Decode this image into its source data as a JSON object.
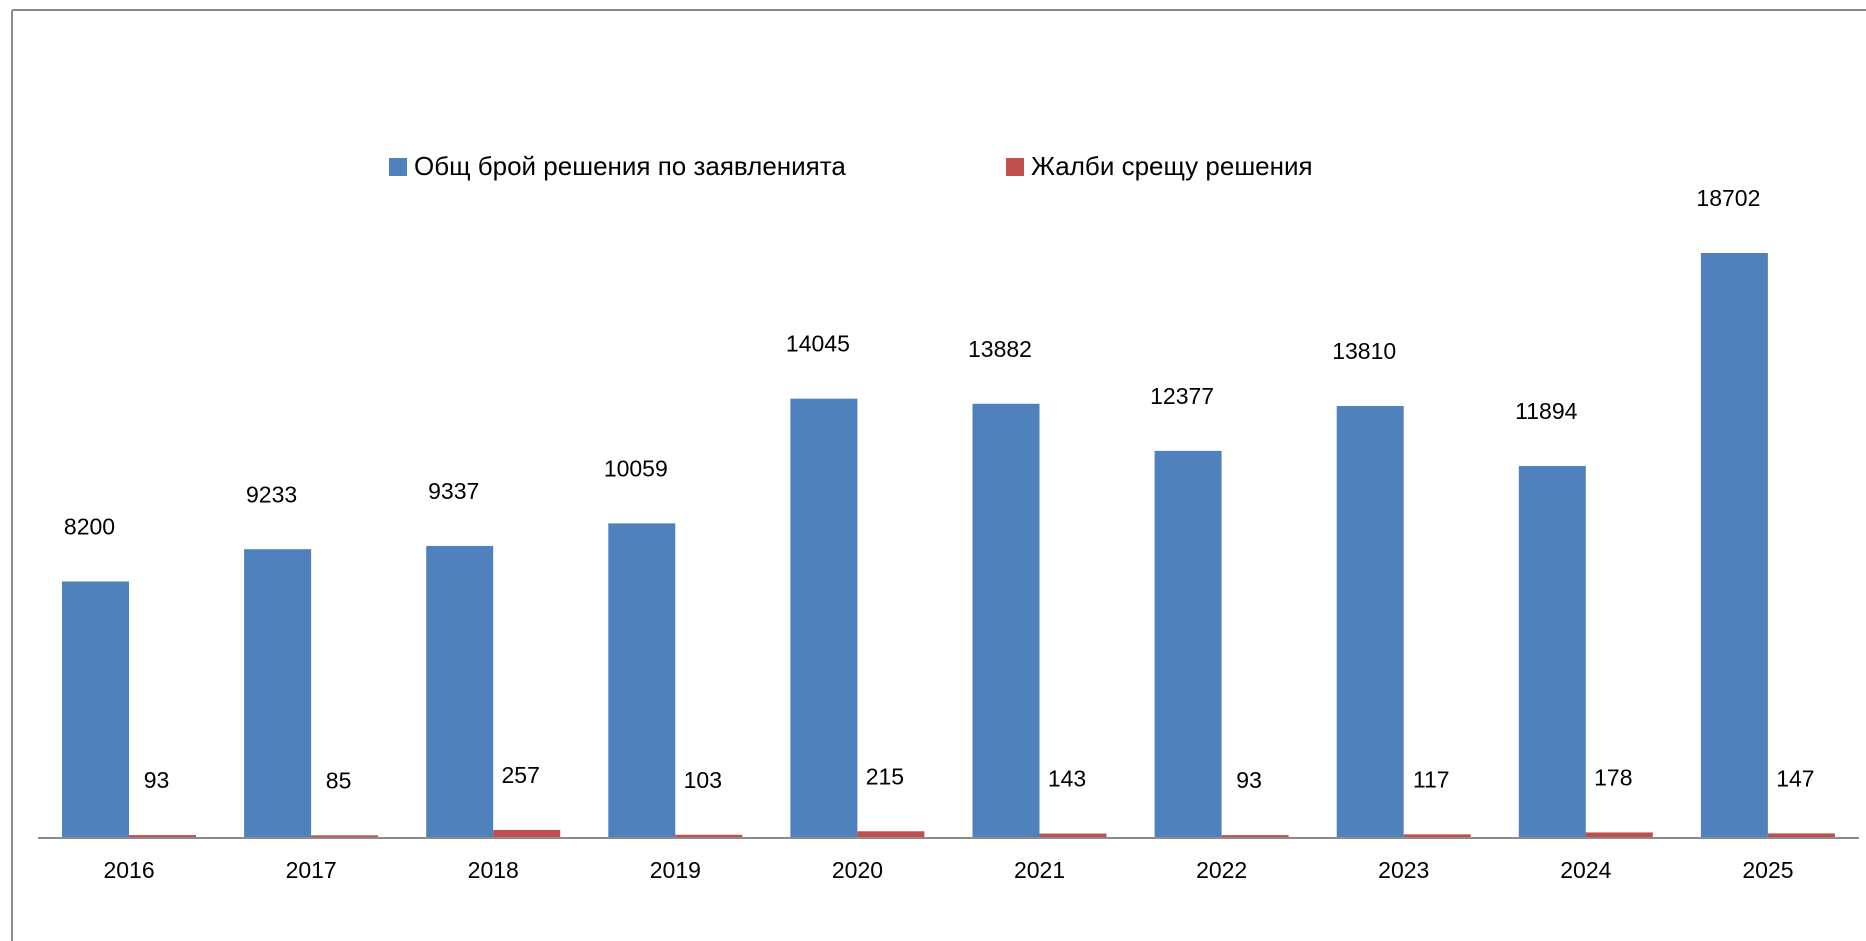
{
  "chart_data": {
    "type": "bar",
    "categories": [
      "2016",
      "2017",
      "2018",
      "2019",
      "2020",
      "2021",
      "2022",
      "2023",
      "2024",
      "2025"
    ],
    "series": [
      {
        "name": "Общ брой решения по заявленията",
        "color": "#4f81bd",
        "values": [
          8200,
          9233,
          9337,
          10059,
          14045,
          13882,
          12377,
          13810,
          11894,
          18702
        ]
      },
      {
        "name": "Жалби срещу решения",
        "color": "#c0504d",
        "values": [
          93,
          85,
          257,
          103,
          215,
          143,
          93,
          117,
          178,
          147
        ]
      }
    ],
    "legend": "top"
  }
}
